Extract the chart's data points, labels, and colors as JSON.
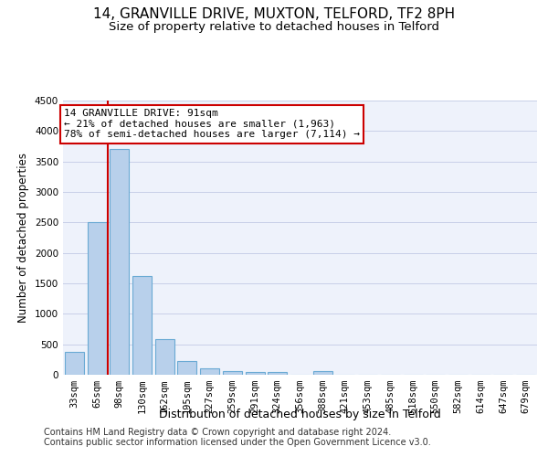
{
  "title": "14, GRANVILLE DRIVE, MUXTON, TELFORD, TF2 8PH",
  "subtitle": "Size of property relative to detached houses in Telford",
  "xlabel": "Distribution of detached houses by size in Telford",
  "ylabel": "Number of detached properties",
  "categories": [
    "33sqm",
    "65sqm",
    "98sqm",
    "130sqm",
    "162sqm",
    "195sqm",
    "227sqm",
    "259sqm",
    "291sqm",
    "324sqm",
    "356sqm",
    "388sqm",
    "421sqm",
    "453sqm",
    "485sqm",
    "518sqm",
    "550sqm",
    "582sqm",
    "614sqm",
    "647sqm",
    "679sqm"
  ],
  "values": [
    375,
    2500,
    3700,
    1625,
    590,
    230,
    110,
    65,
    45,
    45,
    0,
    65,
    0,
    0,
    0,
    0,
    0,
    0,
    0,
    0,
    0
  ],
  "bar_color": "#b8d0eb",
  "bar_edge_color": "#6aaad4",
  "vline_color": "#cc0000",
  "annotation_line1": "14 GRANVILLE DRIVE: 91sqm",
  "annotation_line2": "← 21% of detached houses are smaller (1,963)",
  "annotation_line3": "78% of semi-detached houses are larger (7,114) →",
  "annotation_box_color": "#cc0000",
  "ylim": [
    0,
    4500
  ],
  "yticks": [
    0,
    500,
    1000,
    1500,
    2000,
    2500,
    3000,
    3500,
    4000,
    4500
  ],
  "bg_color": "#eef2fb",
  "grid_color": "#c8cfe8",
  "footer1": "Contains HM Land Registry data © Crown copyright and database right 2024.",
  "footer2": "Contains public sector information licensed under the Open Government Licence v3.0.",
  "title_fontsize": 11,
  "subtitle_fontsize": 9.5,
  "xlabel_fontsize": 9,
  "ylabel_fontsize": 8.5,
  "tick_fontsize": 7.5,
  "annotation_fontsize": 8,
  "footer_fontsize": 7
}
